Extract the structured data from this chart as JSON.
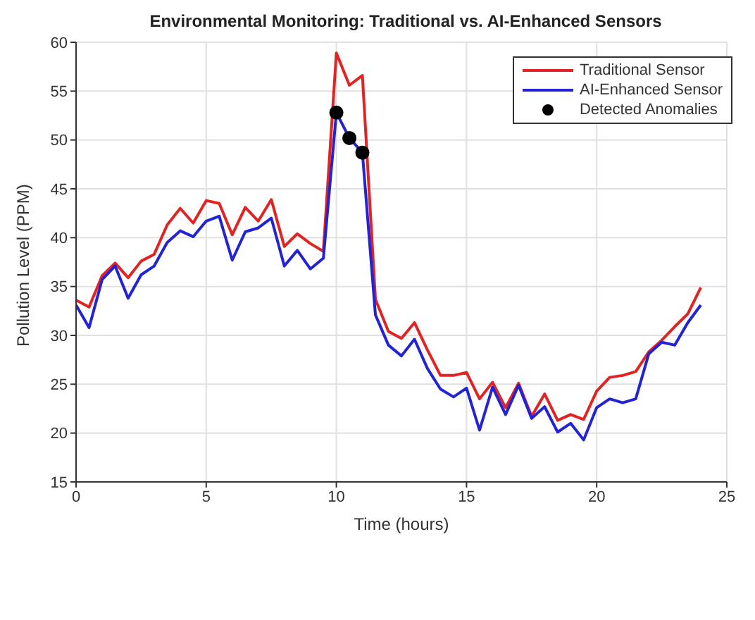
{
  "chart_data": {
    "type": "line",
    "title": "Environmental Monitoring: Traditional vs. AI-Enhanced Sensors",
    "xlabel": "Time (hours)",
    "ylabel": "Pollution Level (PPM)",
    "x": [
      0,
      0.5,
      1,
      1.5,
      2,
      2.5,
      3,
      3.5,
      4,
      4.5,
      5,
      5.5,
      6,
      6.5,
      7,
      7.5,
      8,
      8.5,
      9,
      9.5,
      10,
      10.5,
      11,
      11.5,
      12,
      12.5,
      13,
      13.5,
      14,
      14.5,
      15,
      15.5,
      16,
      16.5,
      17,
      17.5,
      18,
      18.5,
      19,
      19.5,
      20,
      20.5,
      21,
      21.5,
      22,
      22.5,
      23,
      23.5,
      24
    ],
    "series": [
      {
        "name": "Traditional Sensor",
        "color": "#e32222",
        "values": [
          33.6,
          32.9,
          36.1,
          37.4,
          35.9,
          37.6,
          38.3,
          41.3,
          43.0,
          41.5,
          43.8,
          43.5,
          40.3,
          43.1,
          41.7,
          43.9,
          39.1,
          40.4,
          39.4,
          38.6,
          58.9,
          55.6,
          56.6,
          33.7,
          30.4,
          29.7,
          31.3,
          28.5,
          25.9,
          25.9,
          26.2,
          23.5,
          25.2,
          22.6,
          25.1,
          21.7,
          24.0,
          21.3,
          21.9,
          21.4,
          24.3,
          25.7,
          25.9,
          26.3,
          28.3,
          29.5,
          30.9,
          32.2,
          34.9
        ]
      },
      {
        "name": "AI-Enhanced Sensor",
        "color": "#2222d8",
        "values": [
          33.1,
          30.8,
          35.7,
          37.1,
          33.8,
          36.2,
          37.1,
          39.5,
          40.7,
          40.1,
          41.7,
          42.2,
          37.7,
          40.6,
          41.0,
          42.0,
          37.1,
          38.7,
          36.8,
          37.9,
          52.8,
          50.2,
          48.7,
          32.1,
          29.0,
          27.9,
          29.6,
          26.6,
          24.5,
          23.7,
          24.6,
          20.3,
          24.7,
          21.9,
          24.9,
          21.5,
          22.7,
          20.1,
          21.0,
          19.3,
          22.6,
          23.5,
          23.1,
          23.5,
          28.1,
          29.3,
          29.0,
          31.3,
          33.1
        ]
      },
      {
        "name": "Detected Anomalies",
        "type": "scatter",
        "color": "#000000",
        "marker": "circle",
        "x": [
          10,
          10.5,
          11
        ],
        "values": [
          52.8,
          50.2,
          48.7
        ]
      }
    ],
    "xlim": [
      0,
      25
    ],
    "xticks": [
      0,
      5,
      10,
      15,
      20,
      25
    ],
    "ylim": [
      15,
      60
    ],
    "yticks": [
      15,
      20,
      25,
      30,
      35,
      40,
      45,
      50,
      55,
      60
    ],
    "grid": true,
    "legend": "top right",
    "marker": "none",
    "line_style": "solid"
  }
}
